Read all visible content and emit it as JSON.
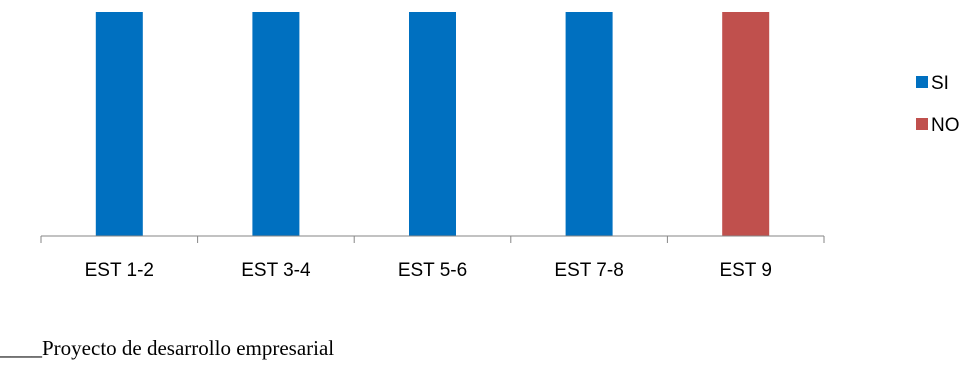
{
  "chart_data": {
    "type": "bar",
    "categories": [
      "EST 1-2",
      "EST 3-4",
      "EST 5-6",
      "EST 7-8",
      "EST 9"
    ],
    "series": [
      {
        "name": "SI",
        "color": "#0070C0",
        "values": [
          1,
          1,
          1,
          1,
          0
        ]
      },
      {
        "name": "NO",
        "color": "#C0504D",
        "values": [
          0,
          0,
          0,
          0,
          1
        ]
      }
    ],
    "stacked": true,
    "ylim": [
      0,
      1
    ],
    "grid": false,
    "legend_position": "right",
    "title": "",
    "xlabel": "",
    "ylabel": ""
  },
  "footer": {
    "text": "____Proyecto de desarrollo empresarial"
  }
}
